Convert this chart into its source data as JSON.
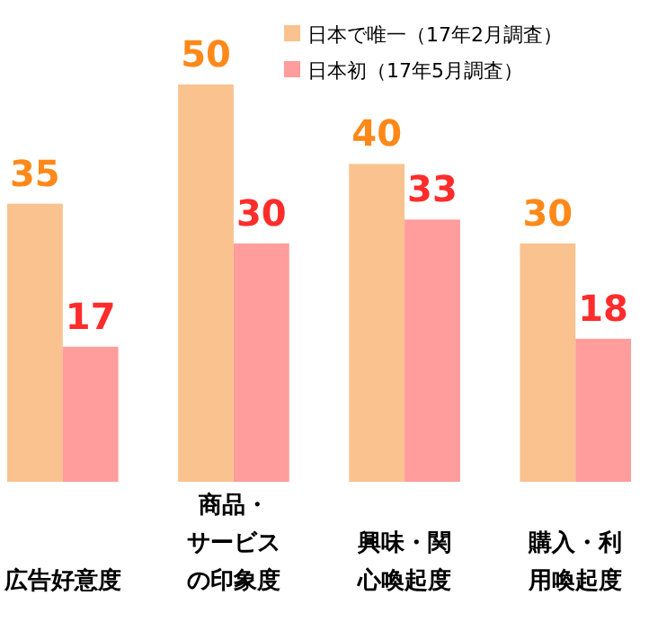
{
  "chart_data": {
    "type": "bar",
    "categories": [
      "広告好意度",
      "商品・サービスの印象度",
      "興味・関心喚起度",
      "購入・利用喚起度"
    ],
    "series": [
      {
        "name": "日本で唯一（17年2月調査）",
        "color": "#f9c28f",
        "values": [
          35,
          50,
          40,
          30
        ]
      },
      {
        "name": "日本初（17年5月調査）",
        "color": "#ff9c9c",
        "values": [
          17,
          30,
          33,
          18
        ]
      }
    ],
    "data_labels": true,
    "legend": "top right",
    "grid": false
  }
}
